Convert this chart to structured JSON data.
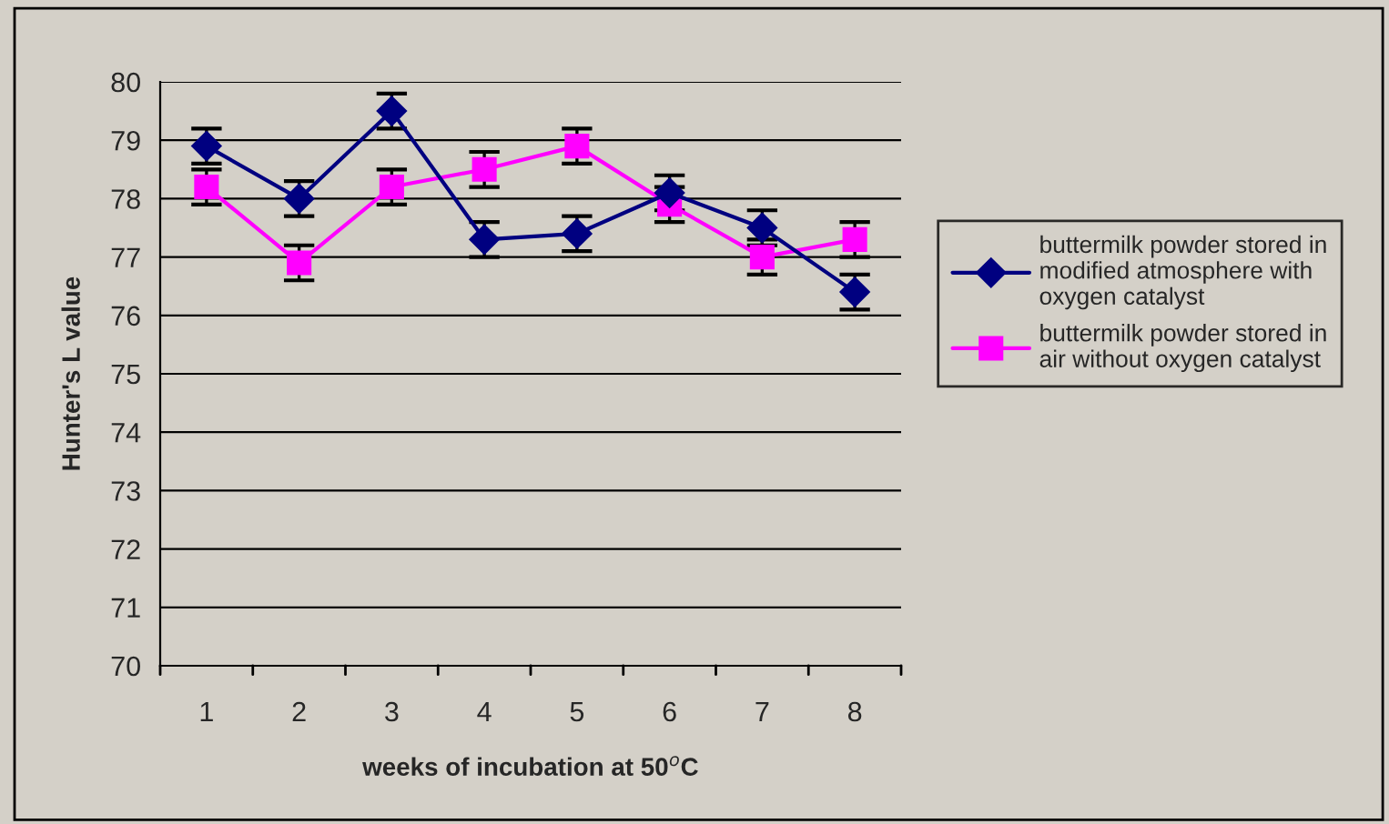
{
  "chart_data": {
    "type": "line",
    "xlabel": "weeks of incubation at 50$^{o}$C",
    "ylabel": "Hunter's L value",
    "categories": [
      "1",
      "2",
      "3",
      "4",
      "5",
      "6",
      "7",
      "8"
    ],
    "series": [
      {
        "name": "buttermilk powder stored in modified atmosphere with oxygen catalyst",
        "color": "#000080",
        "marker": "diamond",
        "values": [
          78.9,
          78.0,
          79.5,
          77.3,
          77.4,
          78.1,
          77.5,
          76.4
        ],
        "errors": [
          0.3,
          0.3,
          0.3,
          0.3,
          0.3,
          0.3,
          0.3,
          0.3
        ]
      },
      {
        "name": "buttermilk powder stored in air without oxygen catalyst",
        "color": "#ff00ff",
        "marker": "square",
        "values": [
          78.2,
          76.9,
          78.2,
          78.5,
          78.9,
          77.9,
          77.0,
          77.3
        ],
        "errors": [
          0.3,
          0.3,
          0.3,
          0.3,
          0.3,
          0.3,
          0.3,
          0.3
        ]
      }
    ],
    "ylim": [
      70,
      80
    ],
    "yticks": [
      70,
      71,
      72,
      73,
      74,
      75,
      76,
      77,
      78,
      79,
      80
    ],
    "grid": "y",
    "legend": "right",
    "line_style": "solid"
  }
}
